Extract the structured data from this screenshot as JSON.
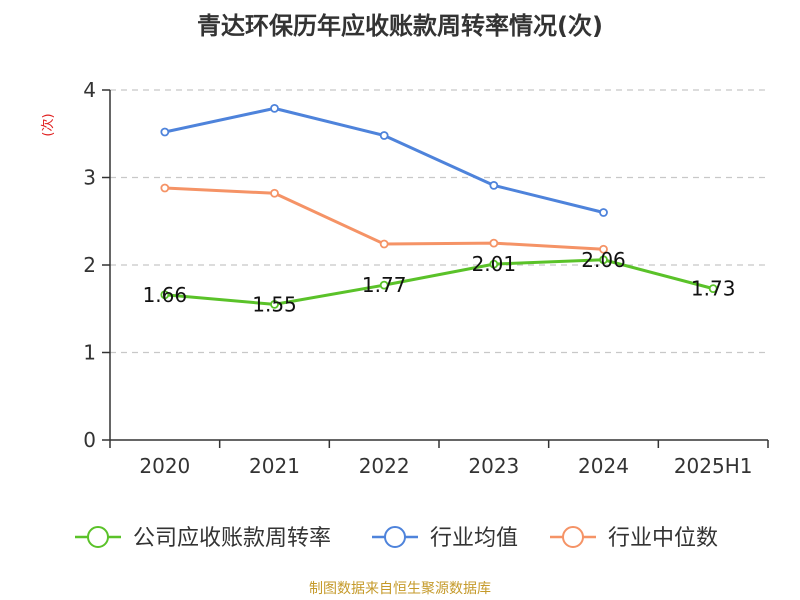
{
  "chart_data": {
    "type": "line",
    "title": "青达环保历年应收账款周转率情况(次)",
    "ylabel": "(次)",
    "xlabel": "",
    "categories": [
      "2020",
      "2021",
      "2022",
      "2023",
      "2024",
      "2025H1"
    ],
    "ylim": [
      0,
      4
    ],
    "yticks": [
      0,
      1,
      2,
      3,
      4
    ],
    "grid": true,
    "legend_position": "bottom",
    "series": [
      {
        "name": "公司应收账款周转率",
        "color": "#5ac229",
        "values": [
          1.66,
          1.55,
          1.77,
          2.01,
          2.06,
          1.73
        ],
        "labels": [
          "1.66",
          "1.55",
          "1.77",
          "2.01",
          "2.06",
          "1.73"
        ]
      },
      {
        "name": "行业均值",
        "color": "#4e83db",
        "values": [
          3.52,
          3.79,
          3.48,
          2.91,
          2.6,
          null
        ]
      },
      {
        "name": "行业中位数",
        "color": "#f59366",
        "values": [
          2.88,
          2.82,
          2.24,
          2.25,
          2.18,
          null
        ]
      }
    ]
  },
  "source": {
    "text": "制图数据来自恒生聚源数据库",
    "color": "#c59a2a"
  },
  "ylabel_color": "#e02020"
}
